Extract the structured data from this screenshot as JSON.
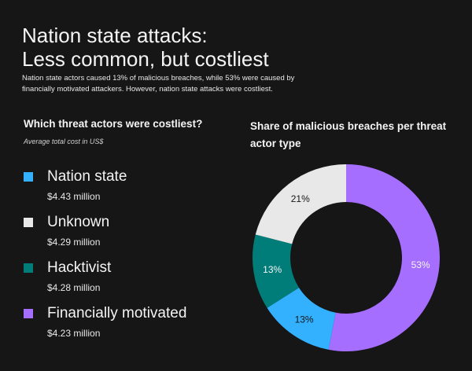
{
  "header": {
    "title_line1": "Nation state attacks:",
    "title_line2": "Less common, but costliest",
    "subtitle": "Nation state actors caused 13% of malicious breaches, while 53% were caused by financially motivated attackers. However, nation state attacks were costliest."
  },
  "cost_panel": {
    "heading": "Which threat actors were costliest?",
    "subheading": "Average total cost in US$",
    "items": [
      {
        "label": "Nation state",
        "value": "$4.43 million",
        "color": "#33b1ff"
      },
      {
        "label": "Unknown",
        "value": "$4.29 million",
        "color": "#e8e8e8"
      },
      {
        "label": "Hacktivist",
        "value": "$4.28 million",
        "color": "#007d79"
      },
      {
        "label": "Financially motivated",
        "value": "$4.23 million",
        "color": "#a56eff"
      }
    ]
  },
  "share_panel": {
    "heading": "Share of malicious breaches per threat actor type"
  },
  "chart_data": [
    {
      "type": "bar",
      "title": "Which threat actors were costliest?",
      "subtitle": "Average total cost in US$",
      "categories": [
        "Nation state",
        "Unknown",
        "Hacktivist",
        "Financially motivated"
      ],
      "values": [
        4.43,
        4.29,
        4.28,
        4.23
      ],
      "value_labels": [
        "$4.43 million",
        "$4.29 million",
        "$4.28 million",
        "$4.23 million"
      ]
    },
    {
      "type": "pie",
      "title": "Share of malicious breaches per threat actor type",
      "donut": true,
      "categories": [
        "Financially motivated",
        "Nation state",
        "Hacktivist",
        "Unknown"
      ],
      "values": [
        53,
        13,
        13,
        21
      ],
      "labels": [
        "53%",
        "13%",
        "13%",
        "21%"
      ],
      "colors": [
        "#a56eff",
        "#33b1ff",
        "#007d79",
        "#e8e8e8"
      ],
      "label_colors": [
        "#f4f4f4",
        "#161616",
        "#f4f4f4",
        "#161616"
      ]
    }
  ]
}
